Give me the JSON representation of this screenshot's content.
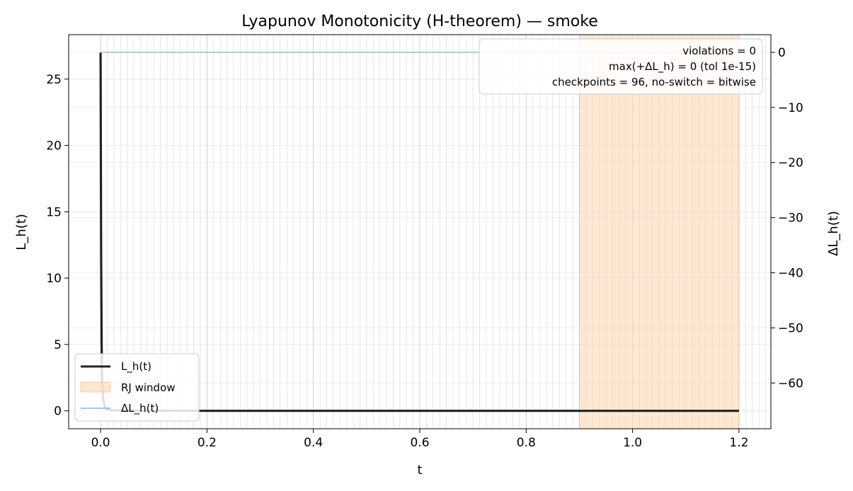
{
  "chart_data": {
    "type": "line",
    "title": "Lyapunov Monotonicity (H-theorem) — smoke",
    "xlabel": "t",
    "ylabel_left": "L_h(t)",
    "ylabel_right": "ΔL_h(t)",
    "xlim": [
      -0.06,
      1.26
    ],
    "ylim_left": [
      -1.35,
      28.35
    ],
    "ylim_right": [
      -68.3,
      3.2
    ],
    "x_ticks": [
      0.0,
      0.2,
      0.4,
      0.6,
      0.8,
      1.0,
      1.2
    ],
    "x_tick_labels": [
      "0.0",
      "0.2",
      "0.4",
      "0.6",
      "0.8",
      "1.0",
      "1.2"
    ],
    "y_left_ticks": [
      0,
      5,
      10,
      15,
      20,
      25
    ],
    "y_left_tick_labels": [
      "0",
      "5",
      "10",
      "15",
      "20",
      "25"
    ],
    "y_right_ticks": [
      0,
      -10,
      -20,
      -30,
      -40,
      -50,
      -60
    ],
    "y_right_tick_labels": [
      "0",
      "−10",
      "−20",
      "−30",
      "−40",
      "−50",
      "−60"
    ],
    "checkpoint_interval": 0.0125,
    "grid": true,
    "legend_location": "lower-left",
    "series": [
      {
        "name": "L_h(t)",
        "axis": "left",
        "color": "#222222",
        "x": [
          0.0,
          0.001,
          0.002,
          0.003,
          0.005,
          0.008,
          0.012,
          0.02,
          0.05,
          0.1,
          0.2,
          0.4,
          0.6,
          0.8,
          1.0,
          1.2
        ],
        "y": [
          27.0,
          12.0,
          5.0,
          2.0,
          0.8,
          0.3,
          0.12,
          0.05,
          0.02,
          0.01,
          0.0,
          0.0,
          0.0,
          0.0,
          0.0,
          0.0
        ]
      },
      {
        "name": "ΔL_h(t)",
        "axis": "right",
        "color": "#8fb5d9",
        "x": [
          0.0,
          1.2
        ],
        "y": [
          0,
          0
        ]
      }
    ],
    "shaded_region": {
      "name": "RJ window",
      "x_start": 0.9,
      "x_end": 1.2,
      "color": "#fcd5b0"
    },
    "annotation": [
      "violations = 0",
      "max(+ΔL_h) = 0 (tol 1e-15)",
      "checkpoints = 96, no-switch = bitwise"
    ]
  }
}
